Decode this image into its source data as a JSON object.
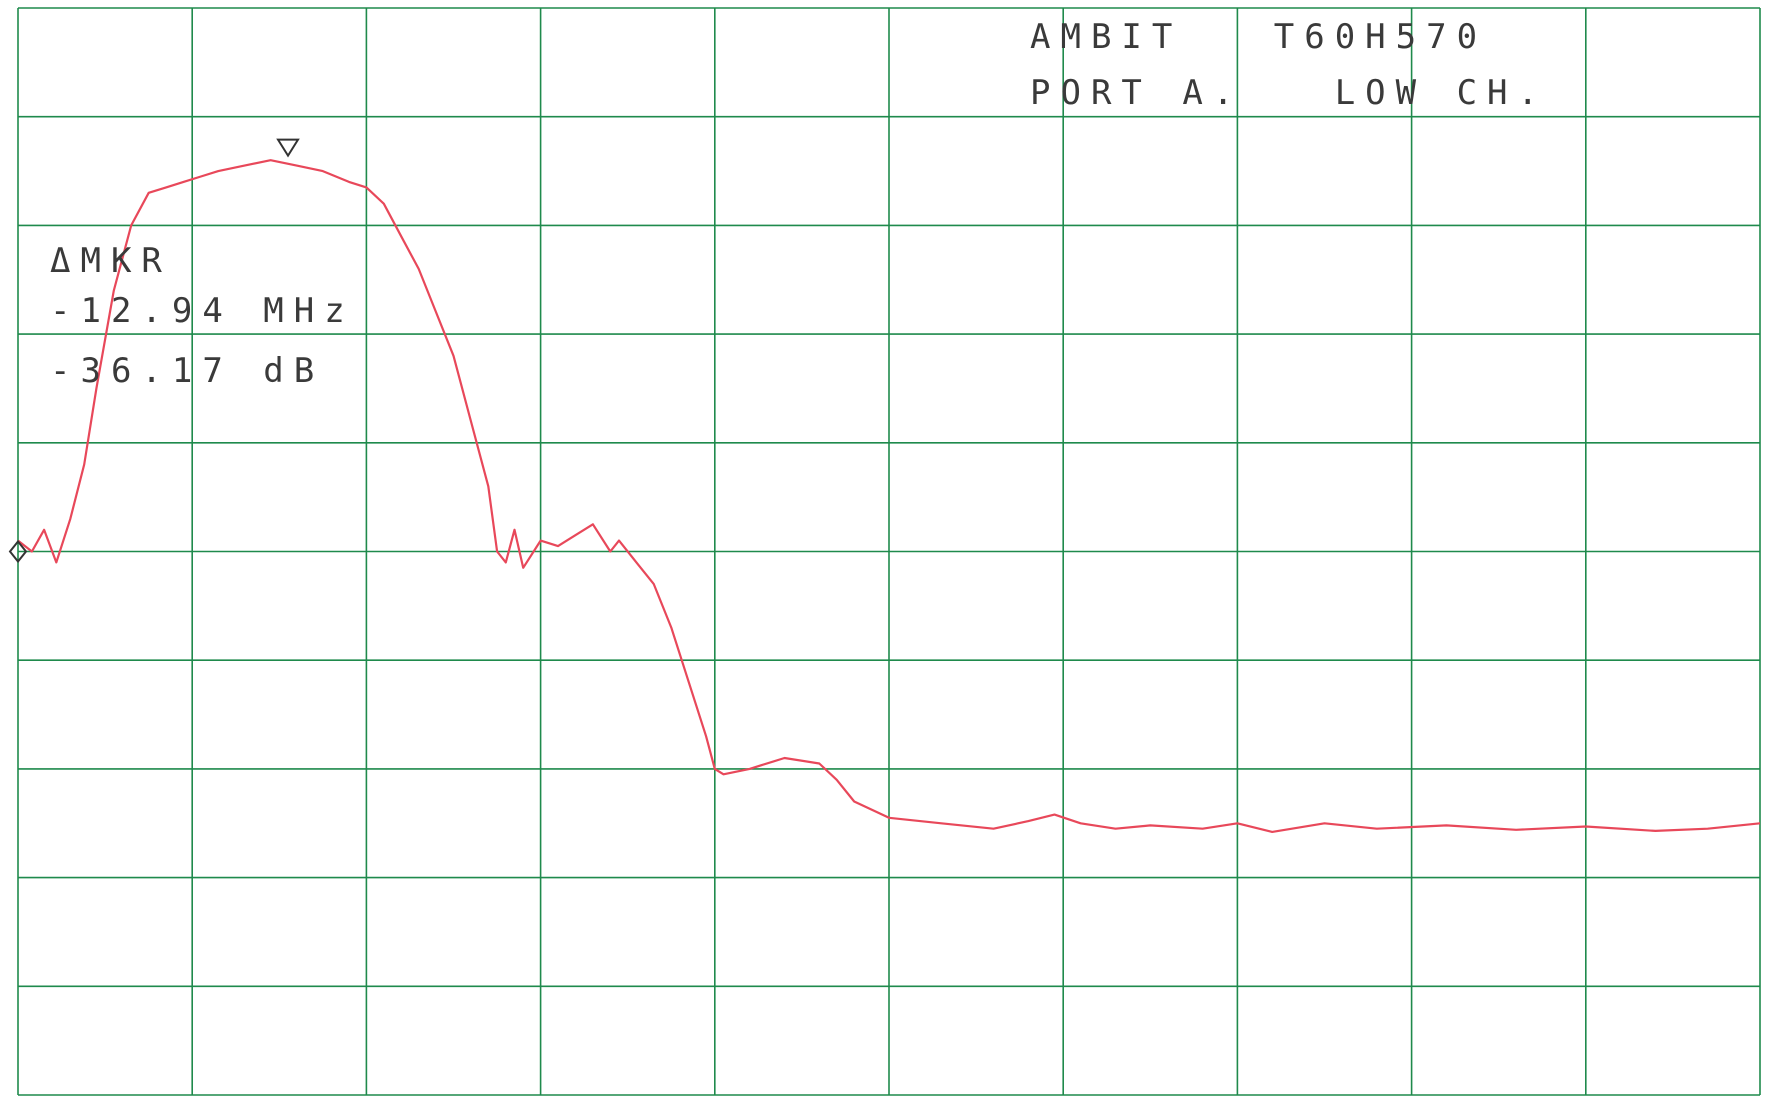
{
  "header": {
    "line1": "AMBIT   T60H570",
    "line2": "PORT A.   LOW CH."
  },
  "marker_readout": {
    "label": "ΔMKR",
    "frequency": "-12.94 MHz",
    "amplitude": "-36.17 dB"
  },
  "colors": {
    "grid": "#1f8a4c",
    "trace": "#e8485a",
    "text": "#3a3a3a",
    "markers": "#333333"
  },
  "chart_data": {
    "type": "line",
    "grid": true,
    "x_divisions": 10,
    "y_divisions": 10,
    "xlim": [
      0,
      10
    ],
    "ylim": [
      0,
      10
    ],
    "reference_marker": {
      "x": 0.0,
      "y": 5.0,
      "symbol": "diamond"
    },
    "peak_marker": {
      "x": 1.55,
      "y": 8.55,
      "symbol": "triangle-down"
    },
    "series": [
      {
        "x": [
          0,
          0.08,
          0.15,
          0.22,
          0.3,
          0.38,
          0.45,
          0.55,
          0.65,
          0.75,
          0.85,
          0.95,
          1.05,
          1.15,
          1.3,
          1.45,
          1.6,
          1.75,
          1.9,
          2.0,
          2.1,
          2.2,
          2.3,
          2.4,
          2.5,
          2.6,
          2.7,
          2.75,
          2.8,
          2.85,
          2.9,
          3.0,
          3.1,
          3.2,
          3.3,
          3.4,
          3.45,
          3.55,
          3.65,
          3.75,
          3.85,
          3.95,
          4.0,
          4.05,
          4.2,
          4.4,
          4.6,
          4.7,
          4.8,
          5.0,
          5.3,
          5.6,
          5.8,
          5.95,
          6.1,
          6.3,
          6.5,
          6.8,
          7.0,
          7.2,
          7.5,
          7.8,
          8.2,
          8.6,
          9.0,
          9.4,
          9.7,
          10.0
        ],
        "y": [
          5.1,
          5.0,
          5.2,
          4.9,
          5.3,
          5.8,
          6.5,
          7.4,
          8.0,
          8.3,
          8.35,
          8.4,
          8.45,
          8.5,
          8.55,
          8.6,
          8.55,
          8.5,
          8.4,
          8.35,
          8.2,
          7.9,
          7.6,
          7.2,
          6.8,
          6.2,
          5.6,
          5.0,
          4.9,
          5.2,
          4.85,
          5.1,
          5.05,
          5.15,
          5.25,
          5.0,
          5.1,
          4.9,
          4.7,
          4.3,
          3.8,
          3.3,
          3.0,
          2.95,
          3.0,
          3.1,
          3.05,
          2.9,
          2.7,
          2.55,
          2.5,
          2.45,
          2.52,
          2.58,
          2.5,
          2.45,
          2.48,
          2.45,
          2.5,
          2.42,
          2.5,
          2.45,
          2.48,
          2.44,
          2.47,
          2.43,
          2.45,
          2.5
        ]
      }
    ]
  }
}
